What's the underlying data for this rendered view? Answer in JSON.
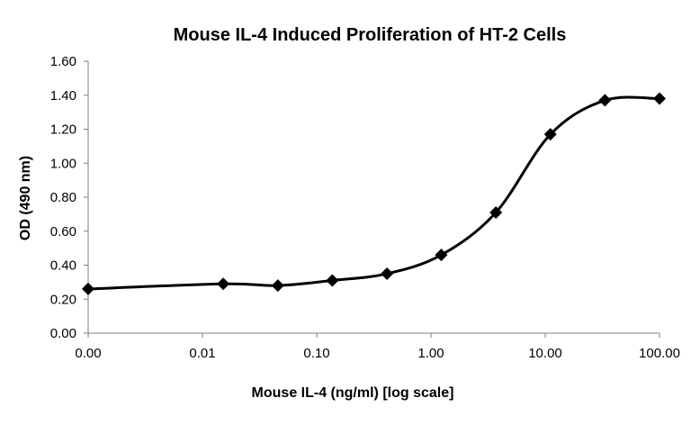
{
  "chart_data": {
    "type": "scatter",
    "title": "Mouse IL-4 Induced Proliferation of HT-2 Cells",
    "xlabel": "Mouse IL-4 (ng/ml) [log scale]",
    "ylabel": "OD (490 nm)",
    "x_scale": "log",
    "x_tick_labels": [
      "0.00",
      "0.01",
      "0.10",
      "1.00",
      "10.00",
      "100.00"
    ],
    "y_tick_labels": [
      "0.00",
      "0.20",
      "0.40",
      "0.60",
      "0.80",
      "1.00",
      "1.20",
      "1.40",
      "1.60"
    ],
    "ylim": [
      0,
      1.6
    ],
    "grid": false,
    "legend": "none",
    "smooth_line": true,
    "marker": "diamond",
    "series": [
      {
        "x": [
          0.001,
          0.0152,
          0.0457,
          0.137,
          0.412,
          1.23,
          3.7,
          11.1,
          33.3,
          100
        ],
        "y": [
          0.26,
          0.29,
          0.28,
          0.31,
          0.35,
          0.46,
          0.71,
          1.17,
          1.37,
          1.38
        ],
        "color": "#000000"
      }
    ]
  }
}
